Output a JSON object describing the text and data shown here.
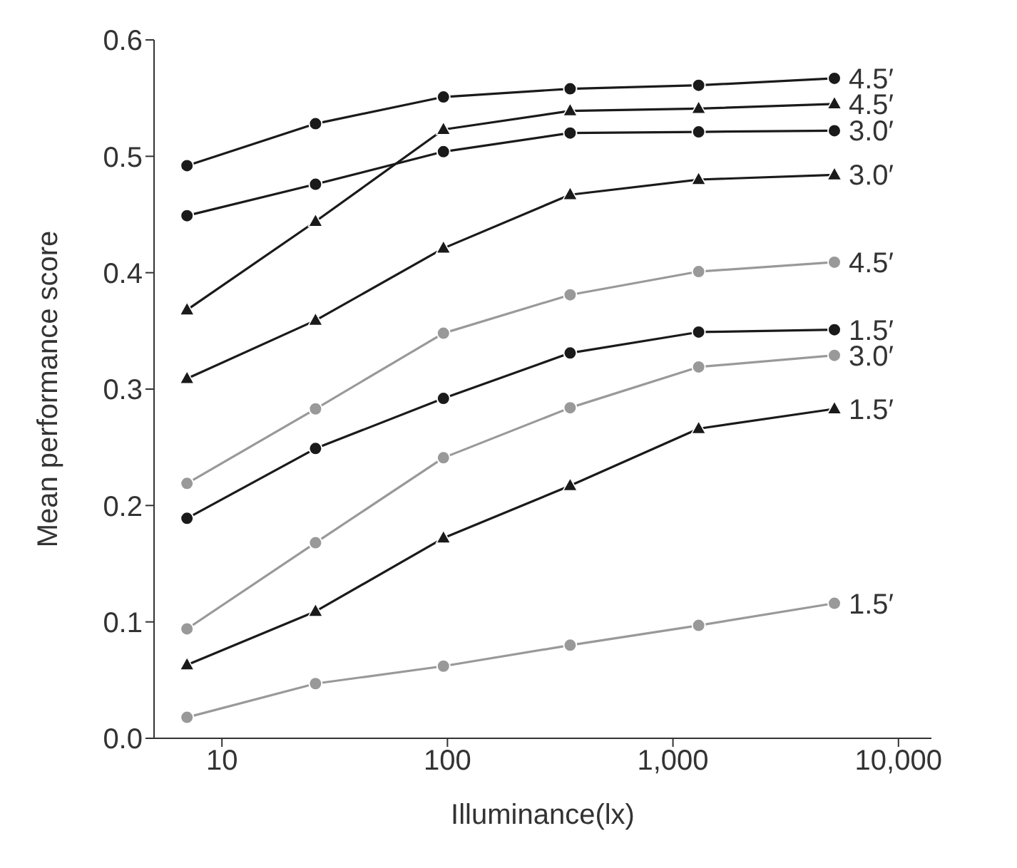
{
  "chart_data": {
    "type": "line",
    "xlabel": "Illuminance(lx)",
    "ylabel": "Mean performance score",
    "log": "x",
    "x": [
      7,
      26,
      96,
      350,
      1300,
      5200
    ],
    "xlim": [
      5,
      14000
    ],
    "xticks": [
      10,
      100,
      {
        "value": 1000,
        "label": "1,000"
      },
      {
        "value": 10000,
        "label": "10,000"
      }
    ],
    "ylim": [
      0,
      0.6
    ],
    "yticks": [
      {
        "value": 0,
        "label": "0.0"
      },
      0.1,
      0.2,
      0.3,
      0.4,
      0.5,
      0.6
    ],
    "grid": false,
    "legend": false,
    "line_style": "solid",
    "series": [
      {
        "name": "4.5′",
        "color": "#1a1a1a",
        "marker": "circle",
        "values": [
          0.492,
          0.528,
          0.551,
          0.558,
          0.561,
          0.567
        ]
      },
      {
        "name": "4.5′",
        "color": "#1a1a1a",
        "marker": "triangle",
        "values": [
          0.368,
          0.444,
          0.523,
          0.539,
          0.541,
          0.545
        ]
      },
      {
        "name": "3.0′",
        "color": "#1a1a1a",
        "marker": "circle",
        "values": [
          0.449,
          0.476,
          0.504,
          0.52,
          0.521,
          0.522
        ]
      },
      {
        "name": "3.0′",
        "color": "#1a1a1a",
        "marker": "triangle",
        "values": [
          0.309,
          0.359,
          0.421,
          0.467,
          0.48,
          0.484
        ]
      },
      {
        "name": "4.5′",
        "color": "#999999",
        "marker": "circle",
        "values": [
          0.219,
          0.283,
          0.348,
          0.381,
          0.401,
          0.409
        ]
      },
      {
        "name": "1.5′",
        "color": "#1a1a1a",
        "marker": "circle",
        "values": [
          0.189,
          0.249,
          0.292,
          0.331,
          0.349,
          0.351
        ]
      },
      {
        "name": "3.0′",
        "color": "#999999",
        "marker": "circle",
        "values": [
          0.094,
          0.168,
          0.241,
          0.284,
          0.319,
          0.329
        ]
      },
      {
        "name": "1.5′",
        "color": "#1a1a1a",
        "marker": "triangle",
        "values": [
          0.063,
          0.109,
          0.172,
          0.217,
          0.266,
          0.283
        ]
      },
      {
        "name": "1.5′",
        "color": "#999999",
        "marker": "circle",
        "values": [
          0.018,
          0.047,
          0.062,
          0.08,
          0.097,
          0.116
        ]
      }
    ]
  }
}
